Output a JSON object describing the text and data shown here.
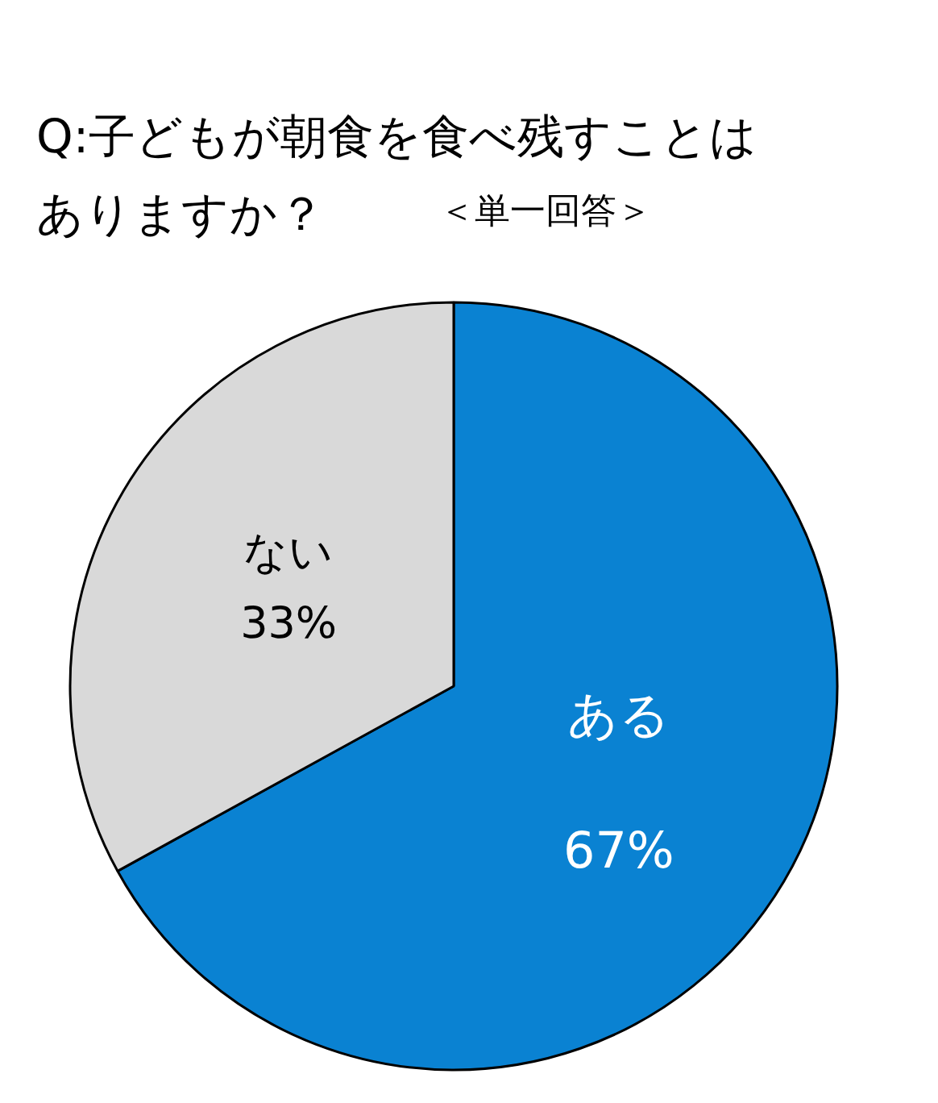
{
  "chart_data": {
    "type": "pie",
    "title": "Q:子どもが朝食を食べ残すことはありますか？",
    "subtitle": "＜単一回答＞",
    "categories": [
      "ある",
      "ない"
    ],
    "values": [
      67,
      33
    ],
    "colors": [
      "#0a82d2",
      "#d9d9d9"
    ],
    "value_labels": [
      "67%",
      "33%"
    ]
  }
}
